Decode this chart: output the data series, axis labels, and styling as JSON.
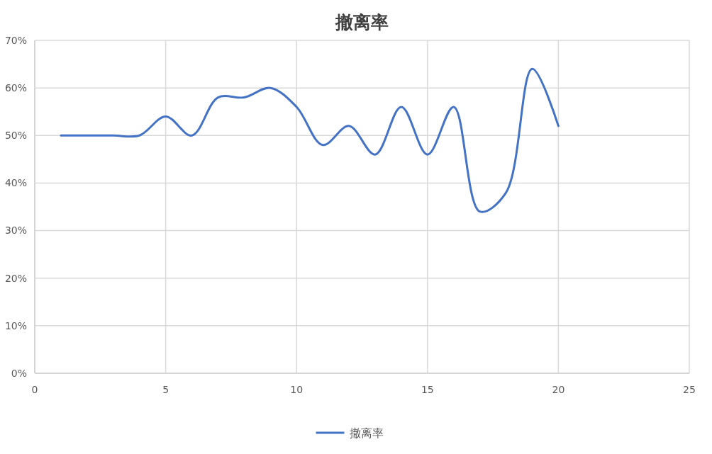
{
  "chart_data": {
    "type": "line",
    "title": "撤离率",
    "x": [
      1,
      2,
      3,
      4,
      5,
      6,
      7,
      8,
      9,
      10,
      11,
      12,
      13,
      14,
      15,
      16,
      17,
      18,
      19,
      20
    ],
    "series": [
      {
        "name": "撤离率",
        "color": "#4472c4",
        "values": [
          50,
          50,
          50,
          50,
          54,
          50,
          58,
          58,
          60,
          56,
          48,
          52,
          46,
          56,
          46,
          56,
          34,
          38,
          64,
          52
        ]
      }
    ],
    "xlim": [
      0,
      25
    ],
    "xticks": [
      0,
      5,
      10,
      15,
      20,
      25
    ],
    "ylim": [
      0,
      70
    ],
    "yticks": [
      {
        "value": 0,
        "label": "0%"
      },
      {
        "value": 10,
        "label": "10%"
      },
      {
        "value": 20,
        "label": "20%"
      },
      {
        "value": 30,
        "label": "30%"
      },
      {
        "value": 40,
        "label": "40%"
      },
      {
        "value": 50,
        "label": "50%"
      },
      {
        "value": 60,
        "label": "60%"
      },
      {
        "value": 70,
        "label": "70%"
      }
    ],
    "grid": true,
    "legend": "bottom",
    "line_style": "solid"
  }
}
